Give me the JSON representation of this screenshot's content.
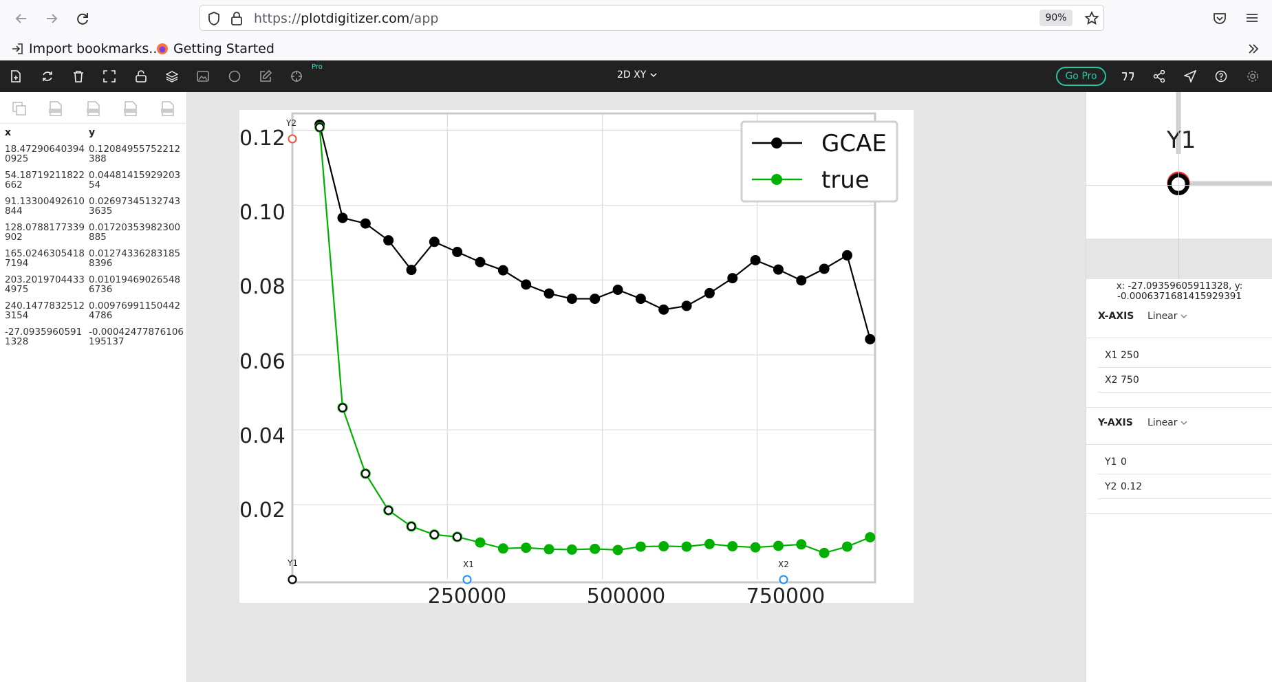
{
  "browser": {
    "url_scheme": "https://",
    "url_host": "plotdigitizer.com",
    "url_path": "/app",
    "zoom": "90%",
    "bookmarks": [
      "Import bookmarks...",
      "Getting Started"
    ]
  },
  "toolbar": {
    "pro_tag": "Pro",
    "mode": "2D XY",
    "go_pro": "Go Pro",
    "accent_color": "#26c6a8"
  },
  "data_table": {
    "headers": [
      "x",
      "y"
    ],
    "rows": [
      {
        "x": "18.472906403940925",
        "y": "0.12084955752212388"
      },
      {
        "x": "54.18719211822662",
        "y": "0.0448141592920354"
      },
      {
        "x": "91.13300492610844",
        "y": "0.026973451327433635"
      },
      {
        "x": "128.0788177339902",
        "y": "0.01720353982300885"
      },
      {
        "x": "165.02463054187194",
        "y": "0.012743362831858396"
      },
      {
        "x": "203.20197044334975",
        "y": "0.010194690265486736"
      },
      {
        "x": "240.14778325123154",
        "y": "0.009769911504424786"
      },
      {
        "x": "-27.09359605911328",
        "y": "-0.00042477876106195137"
      }
    ]
  },
  "plot": {
    "y_ticks": [
      "0.12",
      "0.10",
      "0.08",
      "0.06",
      "0.04",
      "0.02"
    ],
    "x_ticks": [
      "250000",
      "500000",
      "750000"
    ],
    "legend": [
      "GCAE",
      "true"
    ],
    "markers": {
      "y2": "Y2",
      "y1": "Y1",
      "x1": "X1",
      "x2": "X2"
    }
  },
  "chart_data": {
    "type": "line",
    "xlim": [
      0,
      940000
    ],
    "ylim": [
      0,
      0.1245
    ],
    "x_ticks": [
      250000,
      500000,
      750000
    ],
    "y_ticks": [
      0.02,
      0.04,
      0.06,
      0.08,
      0.1,
      0.12
    ],
    "grid": true,
    "legend_position": "top-right",
    "series": [
      {
        "name": "GCAE",
        "color": "#000000",
        "x": [
          44000,
          81000,
          118000,
          155000,
          192000,
          229000,
          266000,
          303000,
          340000,
          377000,
          414000,
          451000,
          488000,
          525000,
          562000,
          599000,
          636000,
          673000,
          710000,
          747000,
          784000,
          821000,
          858000,
          895000,
          932000
        ],
        "y": [
          0.1215,
          0.0966,
          0.0951,
          0.0906,
          0.0827,
          0.0902,
          0.0875,
          0.0848,
          0.0826,
          0.0788,
          0.0764,
          0.075,
          0.075,
          0.0774,
          0.075,
          0.0721,
          0.0731,
          0.0765,
          0.0805,
          0.0853,
          0.0828,
          0.0799,
          0.083,
          0.0866,
          0.0642
        ]
      },
      {
        "name": "true",
        "color": "#00b000",
        "x": [
          44000,
          81000,
          118000,
          155000,
          192000,
          229000,
          266000,
          303000,
          340000,
          377000,
          414000,
          451000,
          488000,
          525000,
          562000,
          599000,
          636000,
          673000,
          710000,
          747000,
          784000,
          821000,
          858000,
          895000,
          932000
        ],
        "y": [
          0.1208,
          0.0459,
          0.0283,
          0.0185,
          0.0142,
          0.012,
          0.0114,
          0.0099,
          0.0083,
          0.0085,
          0.0081,
          0.008,
          0.0082,
          0.0079,
          0.0088,
          0.0089,
          0.0088,
          0.0095,
          0.0089,
          0.0086,
          0.009,
          0.0094,
          0.0071,
          0.0088,
          0.0113
        ]
      }
    ]
  },
  "right_panel": {
    "mag_label": "Y1",
    "coord_readout_line1": "x: -27.09359605911328, y:",
    "coord_readout_line2": "-0.0006371681415929391",
    "x_axis": {
      "title": "X-AXIS",
      "type": "Linear",
      "x1_label": "X1",
      "x1_value": "250",
      "x2_label": "X2",
      "x2_value": "750"
    },
    "y_axis": {
      "title": "Y-AXIS",
      "type": "Linear",
      "y1_label": "Y1",
      "y1_value": "0",
      "y2_label": "Y2",
      "y2_value": "0.12"
    }
  }
}
